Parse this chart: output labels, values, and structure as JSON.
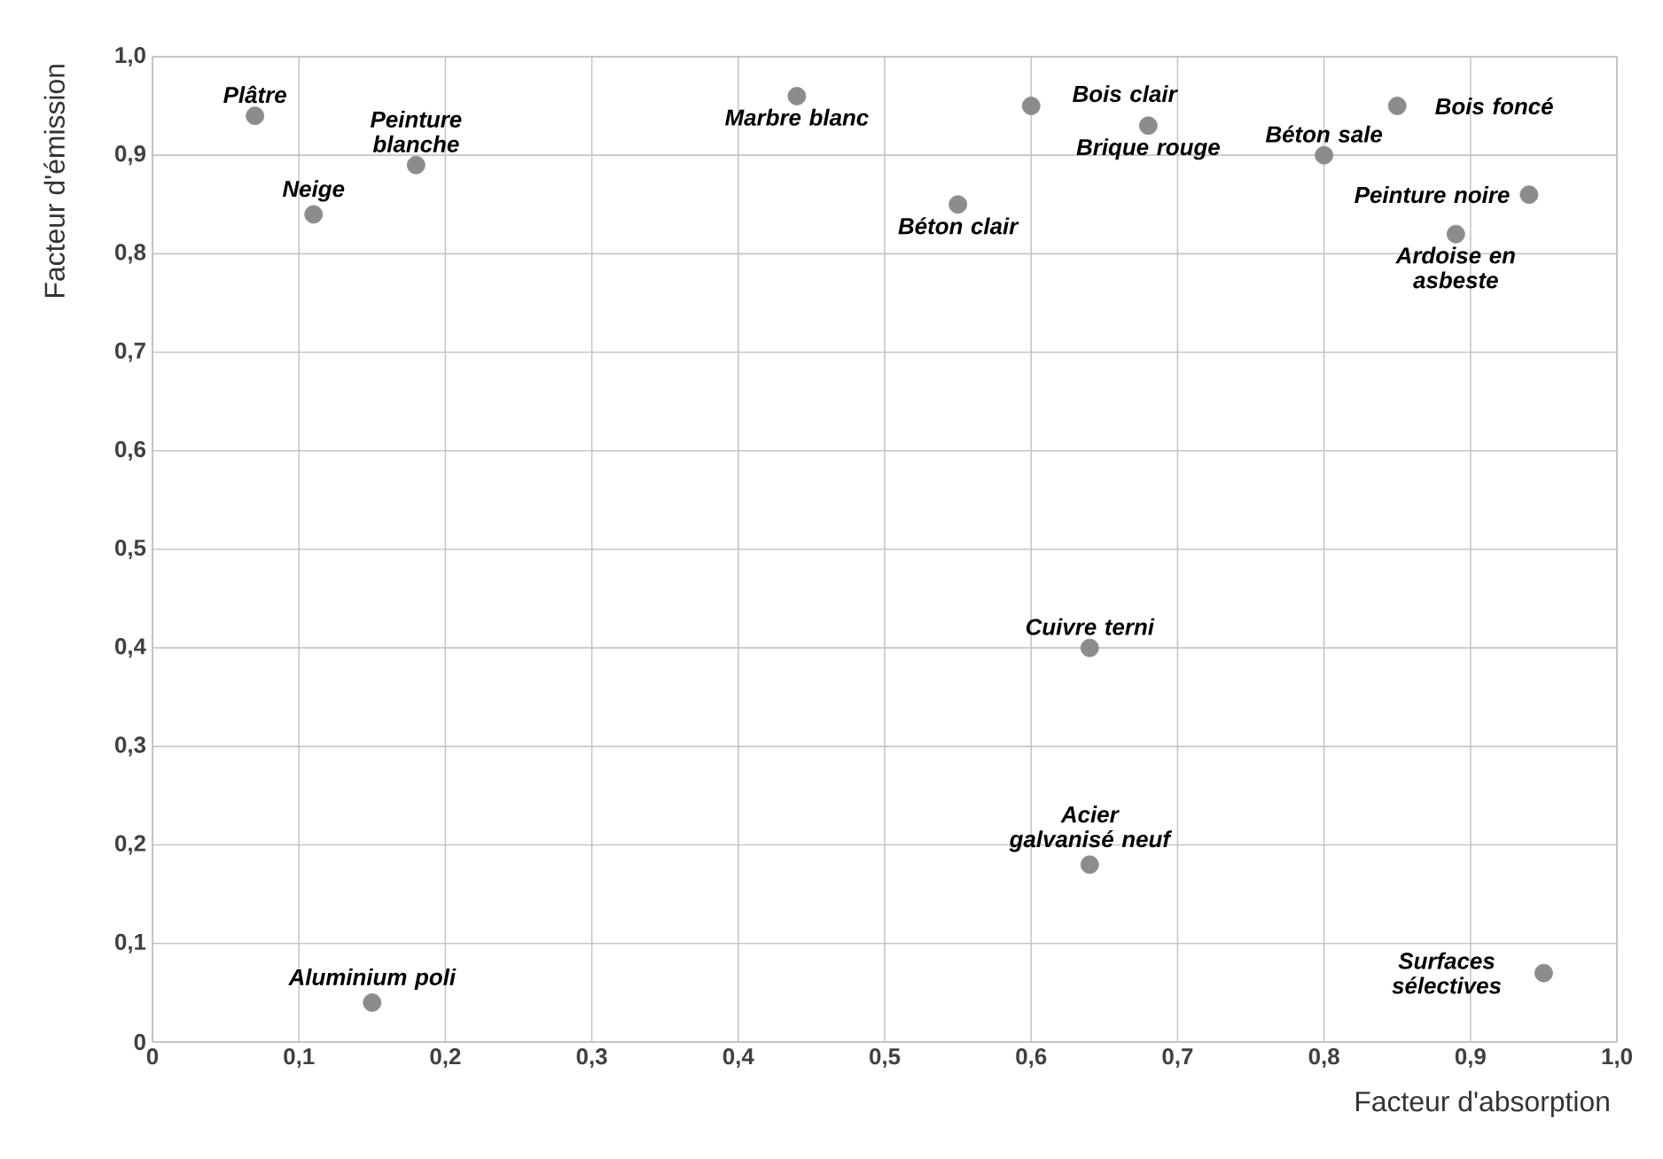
{
  "chart_data": {
    "type": "scatter",
    "xlabel": "Facteur d'absorption",
    "ylabel": "Facteur d'émission",
    "xlim": [
      0,
      1
    ],
    "ylim": [
      0,
      1
    ],
    "xticks": [
      0,
      {
        "value": 0.1,
        "label": "0,1"
      },
      {
        "value": 0.2,
        "label": "0,2"
      },
      {
        "value": 0.3,
        "label": "0,3"
      },
      {
        "value": 0.4,
        "label": "0,4"
      },
      {
        "value": 0.5,
        "label": "0,5"
      },
      {
        "value": 0.6,
        "label": "0,6"
      },
      {
        "value": 0.7,
        "label": "0,7"
      },
      {
        "value": 0.8,
        "label": "0,8"
      },
      {
        "value": 0.9,
        "label": "0,9"
      },
      {
        "value": 1,
        "label": "1,0"
      }
    ],
    "yticks": [
      0,
      {
        "value": 0.1,
        "label": "0,1"
      },
      {
        "value": 0.2,
        "label": "0,2"
      },
      {
        "value": 0.3,
        "label": "0,3"
      },
      {
        "value": 0.4,
        "label": "0,4"
      },
      {
        "value": 0.5,
        "label": "0,5"
      },
      {
        "value": 0.6,
        "label": "0,6"
      },
      {
        "value": 0.7,
        "label": "0,7"
      },
      {
        "value": 0.8,
        "label": "0,8"
      },
      {
        "value": 0.9,
        "label": "0,9"
      },
      {
        "value": 1,
        "label": "1,0"
      }
    ],
    "grid": true,
    "marker": "circle",
    "series": [
      {
        "color": "#8c8c8c",
        "x": [
          0.07,
          0.11,
          0.18,
          0.44,
          0.55,
          0.6,
          0.68,
          0.8,
          0.85,
          0.94,
          0.89,
          0.64,
          0.64,
          0.15,
          0.95
        ],
        "values": [
          0.94,
          0.84,
          0.89,
          0.96,
          0.85,
          0.95,
          0.93,
          0.9,
          0.95,
          0.86,
          0.82,
          0.4,
          0.18,
          0.04,
          0.07
        ]
      }
    ],
    "annotations": [
      {
        "text": "Plâtre",
        "x": 0.07,
        "y": 0.94
      },
      {
        "text": "Neige",
        "x": 0.11,
        "y": 0.84
      },
      {
        "text": "Peinture blanche",
        "x": 0.18,
        "y": 0.89
      },
      {
        "text": "Marbre blanc",
        "x": 0.44,
        "y": 0.96
      },
      {
        "text": "Béton clair",
        "x": 0.55,
        "y": 0.85
      },
      {
        "text": "Bois clair",
        "x": 0.6,
        "y": 0.95
      },
      {
        "text": "Brique rouge",
        "x": 0.68,
        "y": 0.93
      },
      {
        "text": "Béton sale",
        "x": 0.8,
        "y": 0.9
      },
      {
        "text": "Bois foncé",
        "x": 0.85,
        "y": 0.95
      },
      {
        "text": "Peinture noire",
        "x": 0.94,
        "y": 0.86
      },
      {
        "text": "Ardoise en asbeste",
        "x": 0.89,
        "y": 0.82
      },
      {
        "text": "Cuivre terni",
        "x": 0.64,
        "y": 0.4
      },
      {
        "text": "Acier galvanisé neuf",
        "x": 0.64,
        "y": 0.18
      },
      {
        "text": "Aluminium poli",
        "x": 0.15,
        "y": 0.04
      },
      {
        "text": "Surfaces sélectives",
        "x": 0.95,
        "y": 0.07
      }
    ]
  }
}
